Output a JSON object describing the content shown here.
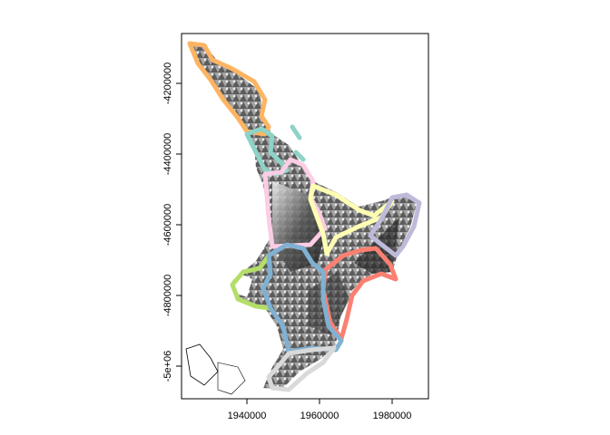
{
  "map": {
    "x_ticks": [
      {
        "value": 1940000,
        "label": "1940000"
      },
      {
        "value": 1960000,
        "label": "1960000"
      },
      {
        "value": 1980000,
        "label": "1980000"
      }
    ],
    "y_ticks": [
      {
        "value": -4200000,
        "label": "-4200000"
      },
      {
        "value": -4400000,
        "label": "-4400000"
      },
      {
        "value": -4600000,
        "label": "-4600000"
      },
      {
        "value": -4800000,
        "label": "-4800000"
      },
      {
        "value": -5000000,
        "label": "-5e+06"
      }
    ],
    "region_colors": {
      "northland": "#fdb462",
      "auckland": "#8dd3c7",
      "waikato": "#fccde5",
      "bay-of-plenty": "#ffffb3",
      "gisborne": "#bebada",
      "hawkes-bay": "#fb8072",
      "taranaki": "#b3de69",
      "manawatu-whanganui": "#80b1d3",
      "wellington": "#d9d9d9"
    }
  }
}
